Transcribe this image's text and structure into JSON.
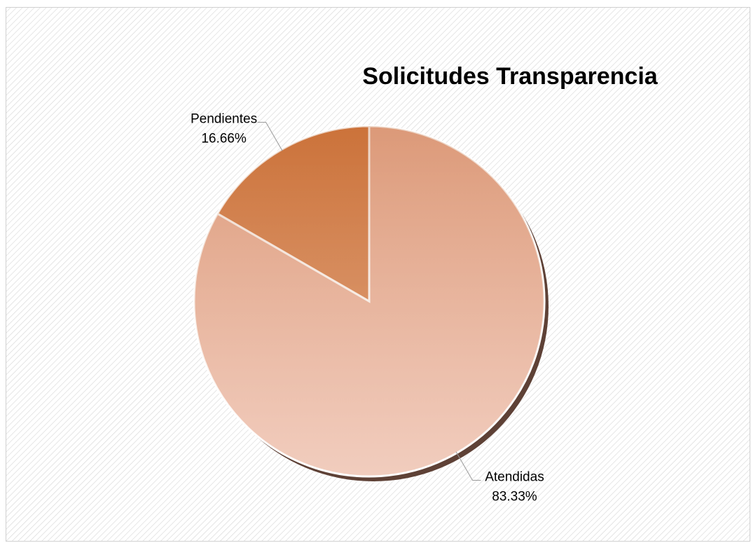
{
  "chart_data": {
    "type": "pie",
    "title": "Solicitudes Transparencia",
    "categories": [
      "Atendidas",
      "Pendientes"
    ],
    "values": [
      83.33,
      16.66
    ],
    "value_labels": [
      "83.33%",
      "16.66%"
    ],
    "colors": [
      "#eab29b",
      "#d47e48"
    ]
  }
}
